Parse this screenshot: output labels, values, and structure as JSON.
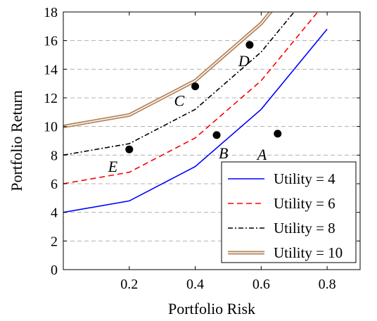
{
  "chart_data": {
    "type": "line",
    "title": "",
    "xlabel": "Portfolio Risk",
    "ylabel": "Portfolio Return",
    "xlim": [
      0,
      0.9
    ],
    "ylim": [
      0,
      18
    ],
    "xticks": [
      "0.2",
      "0.4",
      "0.6",
      "0.8"
    ],
    "yticks": [
      "0",
      "2",
      "4",
      "6",
      "8",
      "10",
      "12",
      "14",
      "16",
      "18"
    ],
    "xtick_values": [
      0.2,
      0.4,
      0.6,
      0.8
    ],
    "ytick_values": [
      0,
      2,
      4,
      6,
      8,
      10,
      12,
      14,
      16,
      18
    ],
    "grid": "horizontal dashed",
    "legend_position": "bottom-right",
    "series": [
      {
        "name": "Utility = 4",
        "style": "solid",
        "color": "#0000ff",
        "x": [
          0,
          0.2,
          0.4,
          0.6,
          0.8
        ],
        "y": [
          4,
          4.8,
          7.2,
          11.2,
          16.8
        ]
      },
      {
        "name": "Utility = 6",
        "style": "dashed",
        "color": "#ff0000",
        "x": [
          0,
          0.2,
          0.4,
          0.6,
          0.8
        ],
        "y": [
          6,
          6.8,
          9.2,
          13.2,
          18.8
        ]
      },
      {
        "name": "Utility = 8",
        "style": "dashdot",
        "color": "#000000",
        "x": [
          0,
          0.2,
          0.4,
          0.6,
          0.8
        ],
        "y": [
          8,
          8.8,
          11.2,
          15.2,
          20.8
        ]
      },
      {
        "name": "Utility = 10",
        "style": "double",
        "color": "#b5835a",
        "x": [
          0,
          0.2,
          0.4,
          0.6,
          0.8
        ],
        "y": [
          10,
          10.8,
          13.2,
          17.2,
          22.8
        ]
      }
    ],
    "points": [
      {
        "label": "E",
        "x": 0.2,
        "y": 8.4
      },
      {
        "label": "C",
        "x": 0.4,
        "y": 12.8
      },
      {
        "label": "B",
        "x": 0.465,
        "y": 9.4
      },
      {
        "label": "D",
        "x": 0.565,
        "y": 15.7
      },
      {
        "label": "A",
        "x": 0.65,
        "y": 9.5
      }
    ]
  }
}
